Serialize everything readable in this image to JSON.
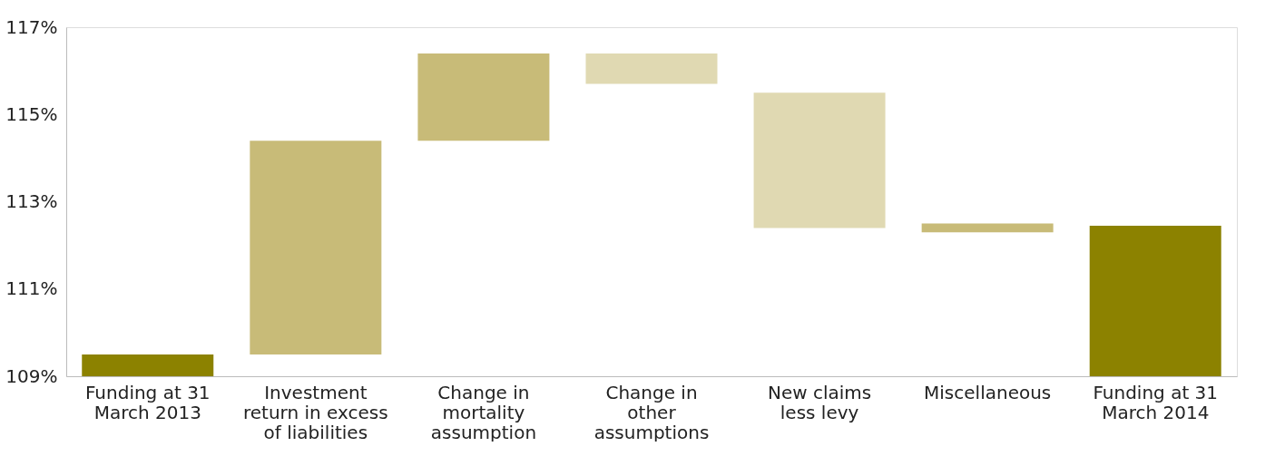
{
  "chart_data": {
    "type": "bar",
    "categories": [
      "Funding at 31\nMarch 2013",
      "Investment\nreturn in excess\nof liabilities",
      "Change in\nmortality\nassumption",
      "Change in\nother\nassumptions",
      "New claims\nless levy",
      "Miscellaneous",
      "Funding at 31\nMarch 2014"
    ],
    "base": [
      109,
      109.5,
      114.4,
      115.7,
      112.4,
      112.3,
      109
    ],
    "values": [
      0.5,
      4.9,
      2.0,
      0.7,
      3.1,
      0.2,
      3.45
    ],
    "colors": [
      "#8c8200",
      "#c8bb78",
      "#c8bb78",
      "#e0d9b2",
      "#e0d9b2",
      "#c8bb78",
      "#8c8200"
    ],
    "ylim": [
      109,
      117
    ],
    "yticks": [
      {
        "value": 109,
        "label": "109%"
      },
      {
        "value": 111,
        "label": "111%"
      },
      {
        "value": 113,
        "label": "113%"
      },
      {
        "value": 115,
        "label": "115%"
      },
      {
        "value": 117,
        "label": "117%"
      }
    ],
    "grid": false
  }
}
